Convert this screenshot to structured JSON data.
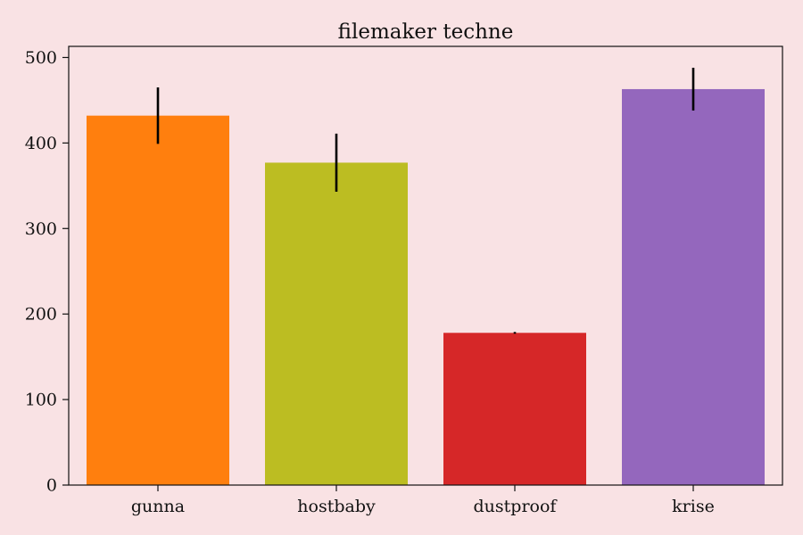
{
  "chart_data": {
    "type": "bar",
    "title": "filemaker techne",
    "xlabel": "",
    "ylabel": "",
    "categories": [
      "gunna",
      "hostbaby",
      "dustproof",
      "krise"
    ],
    "values": [
      432,
      377,
      178,
      463
    ],
    "errors": [
      33,
      34,
      1,
      25
    ],
    "colors": [
      "#ff7f0e",
      "#bcbd22",
      "#d62728",
      "#9467bd"
    ],
    "ylim": [
      0,
      513
    ],
    "yticks": [
      0,
      100,
      200,
      300,
      400,
      500
    ],
    "grid": false,
    "legend": "none"
  },
  "colors": {
    "background": "#f9e2e4",
    "axes_face": "#f9e2e4",
    "axis_line": "#111111",
    "error_bar": "#000000"
  }
}
